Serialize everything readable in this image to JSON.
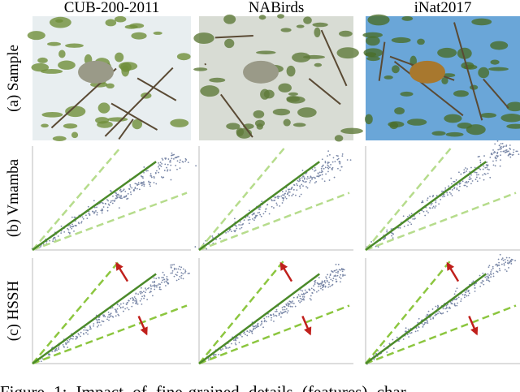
{
  "columns": [
    "CUB-200-2011",
    "NABirds",
    "iNat2017"
  ],
  "rows": [
    "(a) Sample",
    "(b) Vmamba",
    "(c) HSSH"
  ],
  "caption": "Figure 1: Impact of fine-grained details (features) char"
}
